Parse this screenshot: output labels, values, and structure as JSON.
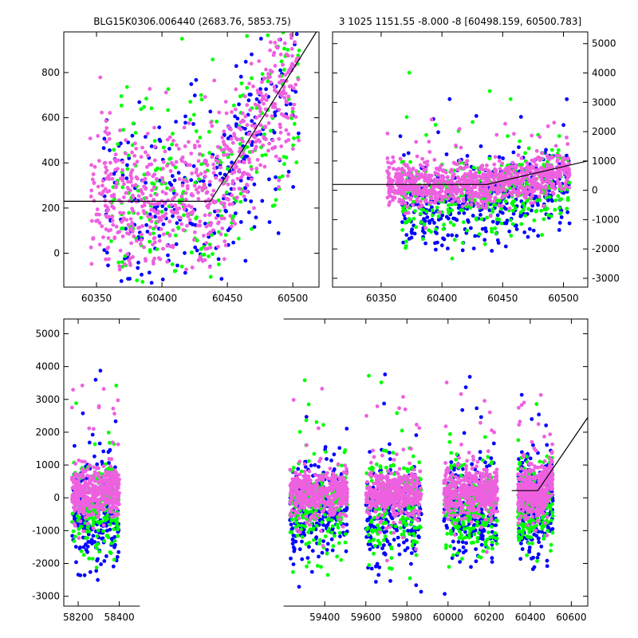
{
  "header": {
    "left_title": "BLG15K0306.006440 (2683.76, 5853.75)",
    "right_title": "3 1025 1151.55 -8.000 -8 [60498.159, 60500.783]"
  },
  "colors": {
    "blue": "#0000ff",
    "green": "#00ff00",
    "pink": "#ee60e0",
    "line": "#000000"
  },
  "chart_data": [
    {
      "id": "top-left",
      "type": "scatter",
      "xlim": [
        60325,
        60520
      ],
      "ylim": [
        -150,
        980
      ],
      "xticks": [
        60350,
        60400,
        60450,
        60500
      ],
      "yticks": [
        0,
        200,
        400,
        600,
        800
      ],
      "ytick_side": "left",
      "series": [
        {
          "color": "blue",
          "x_range": [
            60355,
            60505
          ],
          "y_range": [
            -150,
            980
          ],
          "count": 300
        },
        {
          "color": "green",
          "x_range": [
            60360,
            60505
          ],
          "y_range": [
            -150,
            980
          ],
          "count": 280
        },
        {
          "color": "pink",
          "x_range": [
            60345,
            60505
          ],
          "y_range": [
            -100,
            980
          ],
          "count": 700
        }
      ],
      "model_line": [
        [
          60325,
          230
        ],
        [
          60437,
          230
        ],
        [
          60518,
          980
        ]
      ]
    },
    {
      "id": "top-right",
      "type": "scatter",
      "xlim": [
        60310,
        60520
      ],
      "ylim": [
        -3300,
        5400
      ],
      "xticks": [
        60350,
        60400,
        60450,
        60500
      ],
      "yticks": [
        -3000,
        -2000,
        -1000,
        0,
        1000,
        2000,
        3000,
        4000,
        5000
      ],
      "ytick_side": "right",
      "series": [
        {
          "color": "blue",
          "x_range": [
            60365,
            60505
          ],
          "y_range": [
            -3100,
            4300
          ],
          "count": 450
        },
        {
          "color": "green",
          "x_range": [
            60365,
            60505
          ],
          "y_range": [
            -3200,
            4700
          ],
          "count": 350
        },
        {
          "color": "pink",
          "x_range": [
            60355,
            60505
          ],
          "y_range": [
            -2500,
            2700
          ],
          "count": 900
        }
      ],
      "model_line": [
        [
          60310,
          200
        ],
        [
          60437,
          200
        ],
        [
          60520,
          1000
        ]
      ]
    },
    {
      "id": "bottom",
      "type": "scatter",
      "xlim": [
        58130,
        60680
      ],
      "ylim": [
        -3300,
        5450
      ],
      "xticks": [
        58200,
        58400,
        59400,
        59600,
        59800,
        60000,
        60200,
        60400,
        60600
      ],
      "yticks": [
        -3000,
        -2000,
        -1000,
        0,
        1000,
        2000,
        3000,
        4000,
        5000
      ],
      "ytick_side": "left",
      "seasons": [
        [
          58170,
          58400
        ],
        [
          59230,
          59510
        ],
        [
          59600,
          59870
        ],
        [
          59980,
          60240
        ],
        [
          60340,
          60510
        ]
      ],
      "series": [
        {
          "color": "blue",
          "y_range": [
            -3000,
            5400
          ],
          "count_per_season": 260
        },
        {
          "color": "green",
          "y_range": [
            -3200,
            4800
          ],
          "count_per_season": 200
        },
        {
          "color": "pink",
          "y_range": [
            -2500,
            5200
          ],
          "count_per_season": 450
        }
      ],
      "model_line": [
        [
          60310,
          220
        ],
        [
          60437,
          220
        ],
        [
          60680,
          2450
        ]
      ]
    }
  ]
}
